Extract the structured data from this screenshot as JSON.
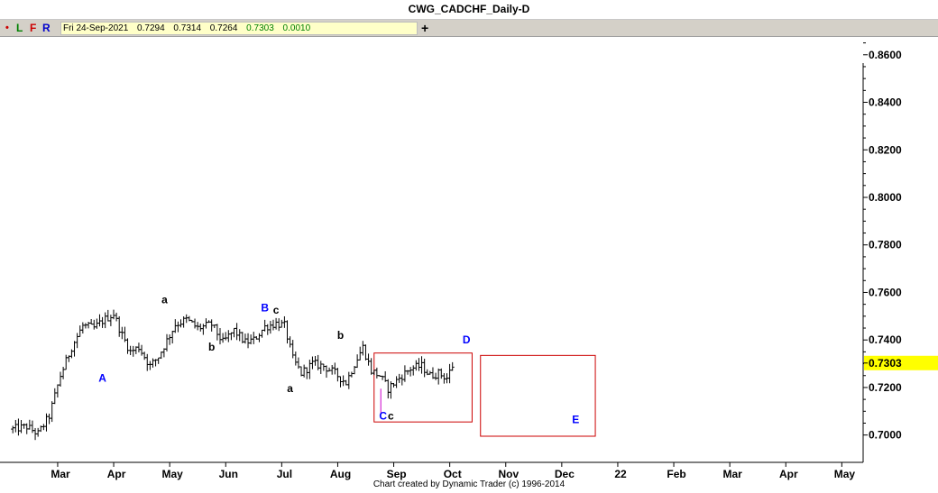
{
  "title": "CWG_CADCHF_Daily-D",
  "toolbar": {
    "dot": "•",
    "buttons": [
      "L",
      "F",
      "R"
    ],
    "quote": [
      "Fri 24-Sep-2021",
      "0.7294",
      "0.7314",
      "0.7264",
      "0.7303",
      "0.0010"
    ],
    "add_symbol": "+"
  },
  "footer": "Chart created by Dynamic Trader  (c) 1996-2014",
  "colors": {
    "price_bar": "#000000",
    "blue_label": "#0000ff",
    "box": "#cc0000",
    "magenta_bar": "#cc00cc",
    "last_price_bg": "#ffff00"
  },
  "chart_data": {
    "type": "ohlc",
    "x_axis_labels": [
      "Mar",
      "Apr",
      "May",
      "Jun",
      "Jul",
      "Aug",
      "Sep",
      "Oct",
      "Nov",
      "Dec",
      "22",
      "Feb",
      "Mar",
      "Apr",
      "May"
    ],
    "month_index_range": [
      0,
      15
    ],
    "ylim": [
      0.6885,
      0.8675
    ],
    "y_ticks": [
      "0.7000",
      "0.7200",
      "0.7400",
      "0.7600",
      "0.7800",
      "0.8000",
      "0.8200",
      "0.8400",
      "0.8600"
    ],
    "last_price": "0.7303",
    "price_path": [
      [
        -0.85,
        0.7025
      ],
      [
        -0.6,
        0.7035
      ],
      [
        -0.4,
        0.7005
      ],
      [
        -0.2,
        0.708
      ],
      [
        0.0,
        0.725
      ],
      [
        0.2,
        0.737
      ],
      [
        0.4,
        0.746
      ],
      [
        0.6,
        0.745
      ],
      [
        0.75,
        0.748
      ],
      [
        0.95,
        0.751
      ],
      [
        1.1,
        0.742
      ],
      [
        1.25,
        0.735
      ],
      [
        1.4,
        0.737
      ],
      [
        1.6,
        0.729
      ],
      [
        1.75,
        0.733
      ],
      [
        1.95,
        0.742
      ],
      [
        2.05,
        0.7465
      ],
      [
        2.25,
        0.7485
      ],
      [
        2.45,
        0.745
      ],
      [
        2.7,
        0.7465
      ],
      [
        2.9,
        0.739
      ],
      [
        3.1,
        0.744
      ],
      [
        3.3,
        0.739
      ],
      [
        3.45,
        0.74
      ],
      [
        3.65,
        0.7455
      ],
      [
        3.85,
        0.747
      ],
      [
        4.0,
        0.746
      ],
      [
        4.15,
        0.732
      ],
      [
        4.3,
        0.726
      ],
      [
        4.5,
        0.73
      ],
      [
        4.7,
        0.729
      ],
      [
        4.9,
        0.726
      ],
      [
        5.1,
        0.722
      ],
      [
        5.25,
        0.73
      ],
      [
        5.4,
        0.737
      ],
      [
        5.55,
        0.727
      ],
      [
        5.7,
        0.725
      ],
      [
        5.85,
        0.7195
      ],
      [
        6.05,
        0.724
      ],
      [
        6.25,
        0.728
      ],
      [
        6.45,
        0.729
      ],
      [
        6.6,
        0.725
      ],
      [
        6.75,
        0.726
      ],
      [
        6.9,
        0.724
      ],
      [
        7.0,
        0.7292
      ]
    ],
    "magenta_bar": {
      "x": 5.72,
      "high": 0.7195,
      "low": 0.709
    },
    "wave_labels": [
      {
        "text": "A",
        "x": 0.75,
        "y": 0.7225,
        "color": "blue"
      },
      {
        "text": "a",
        "x": 1.86,
        "y": 0.7555,
        "color": "black"
      },
      {
        "text": "B",
        "x": 3.65,
        "y": 0.752,
        "color": "blue"
      },
      {
        "text": "c",
        "x": 3.85,
        "y": 0.751,
        "color": "black"
      },
      {
        "text": "b",
        "x": 2.7,
        "y": 0.7355,
        "color": "black"
      },
      {
        "text": "a",
        "x": 4.1,
        "y": 0.718,
        "color": "black"
      },
      {
        "text": "b",
        "x": 5.0,
        "y": 0.7405,
        "color": "black"
      },
      {
        "text": "C",
        "x": 5.76,
        "y": 0.7065,
        "color": "blue"
      },
      {
        "text": "c",
        "x": 5.9,
        "y": 0.7065,
        "color": "black"
      },
      {
        "text": "D",
        "x": 7.25,
        "y": 0.7385,
        "color": "blue"
      },
      {
        "text": "E",
        "x": 9.2,
        "y": 0.705,
        "color": "blue"
      }
    ],
    "boxes": [
      {
        "x1": 5.6,
        "x2": 7.35,
        "y1": 0.7055,
        "y2": 0.7345
      },
      {
        "x1": 7.5,
        "x2": 9.55,
        "y1": 0.6995,
        "y2": 0.7335
      }
    ]
  }
}
